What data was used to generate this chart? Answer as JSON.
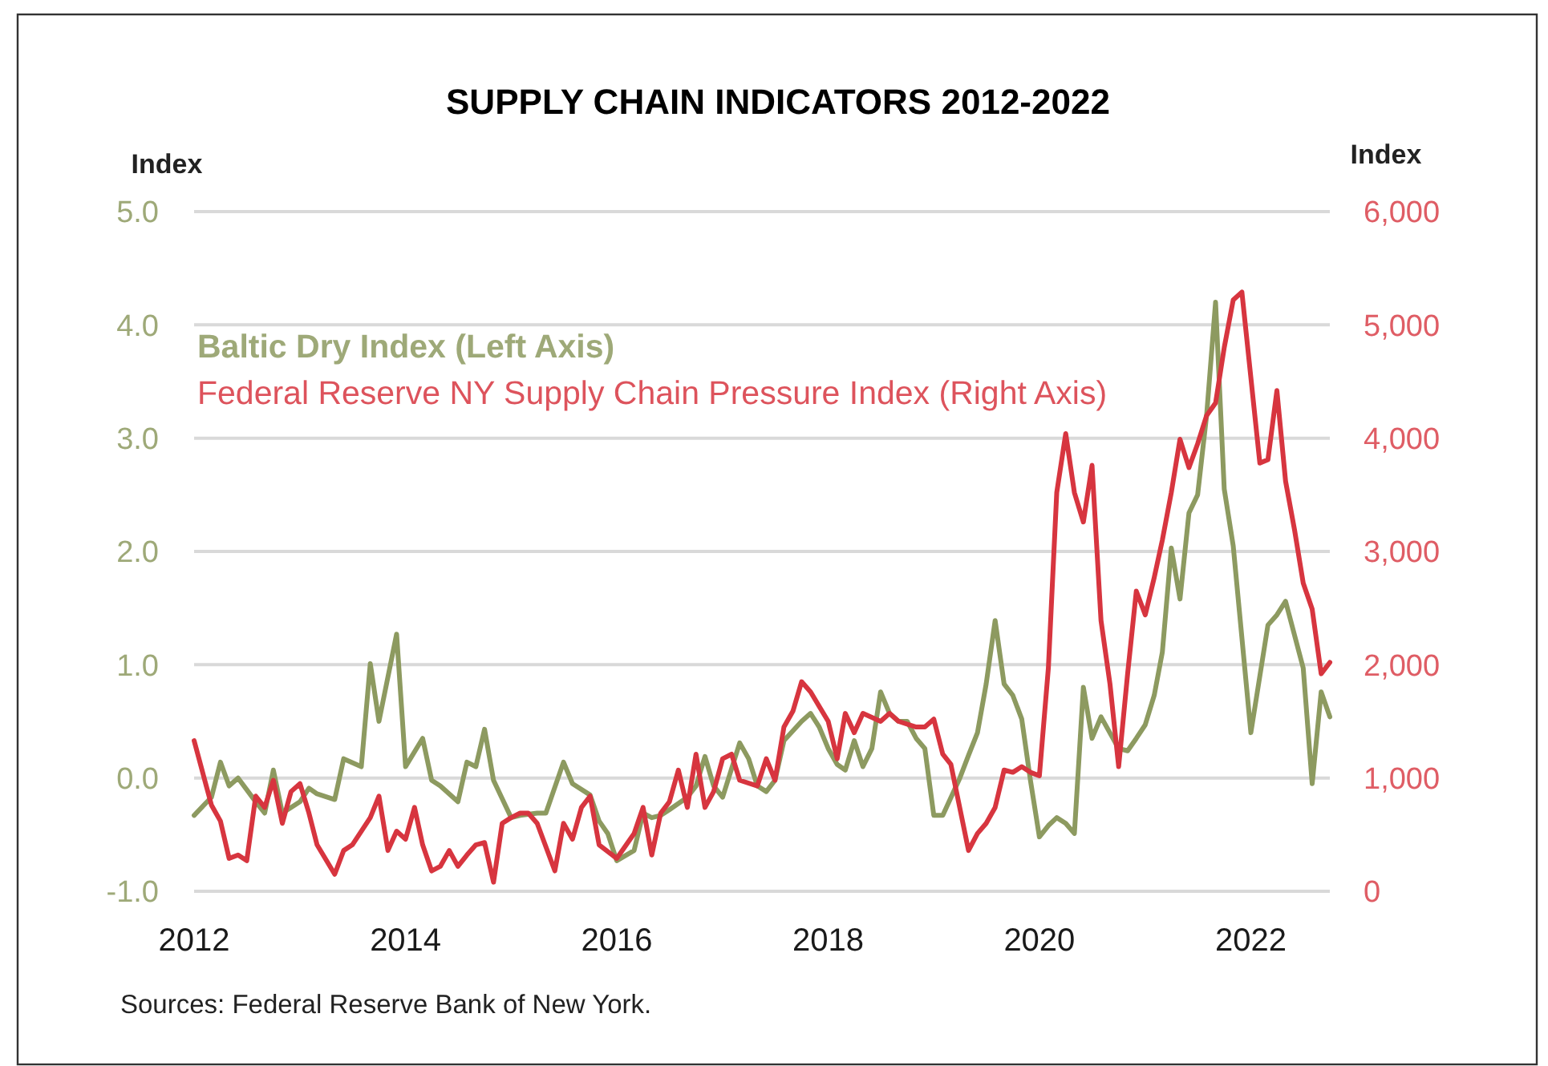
{
  "chart_data": {
    "type": "line",
    "title": "SUPPLY CHAIN INDICATORS 2012-2022",
    "ylabel": "Index",
    "y2label": "Index",
    "annotations": [
      "Sources: Federal Reserve Bank of New York."
    ],
    "xlim": [
      "2012-01",
      "2022-10"
    ],
    "xticks": [
      "2012",
      "2014",
      "2016",
      "2018",
      "2020",
      "2022"
    ],
    "ylim": [
      -1,
      5
    ],
    "yticks": [
      {
        "value": -1,
        "label": "-1.0"
      },
      {
        "value": 0,
        "label": "0.0"
      },
      {
        "value": 1,
        "label": "1.0"
      },
      {
        "value": 2,
        "label": "2.0"
      },
      {
        "value": 3,
        "label": "3.0"
      },
      {
        "value": 4,
        "label": "4.0"
      },
      {
        "value": 5,
        "label": "5.0"
      }
    ],
    "y2lim": [
      0,
      6000
    ],
    "y2ticks": [
      0,
      {
        "value": 1000,
        "label": "1,000"
      },
      {
        "value": 2000,
        "label": "2,000"
      },
      {
        "value": 3000,
        "label": "3,000"
      },
      {
        "value": 4000,
        "label": "4,000"
      },
      {
        "value": 5000,
        "label": "5,000"
      },
      {
        "value": 6000,
        "label": "6,000"
      }
    ],
    "grid": "y",
    "legend": "top left",
    "series": [
      {
        "name": "Baltic Dry Index (Left Axis)",
        "color": "#8d9a60",
        "axis": "y",
        "x": [
          "2012-01",
          "2012-03",
          "2012-04",
          "2012-05",
          "2012-06",
          "2012-08",
          "2012-09",
          "2012-10",
          "2012-11",
          "2013-01",
          "2013-02",
          "2013-03",
          "2013-05",
          "2013-06",
          "2013-08",
          "2013-09",
          "2013-10",
          "2013-12",
          "2014-01",
          "2014-03",
          "2014-04",
          "2014-05",
          "2014-07",
          "2014-08",
          "2014-09",
          "2014-10",
          "2014-11",
          "2015-01",
          "2015-02",
          "2015-04",
          "2015-05",
          "2015-07",
          "2015-08",
          "2015-10",
          "2015-11",
          "2015-12",
          "2016-01",
          "2016-03",
          "2016-04",
          "2016-05",
          "2016-06",
          "2016-07",
          "2016-09",
          "2016-10",
          "2016-11",
          "2016-12",
          "2017-01",
          "2017-03",
          "2017-04",
          "2017-05",
          "2017-06",
          "2017-07",
          "2017-08",
          "2017-10",
          "2017-11",
          "2017-12",
          "2018-01",
          "2018-02",
          "2018-03",
          "2018-04",
          "2018-05",
          "2018-06",
          "2018-07",
          "2018-08",
          "2018-09",
          "2018-10",
          "2018-11",
          "2018-12",
          "2019-01",
          "2019-02",
          "2019-04",
          "2019-05",
          "2019-06",
          "2019-07",
          "2019-08",
          "2019-09",
          "2019-10",
          "2019-11",
          "2019-12",
          "2020-01",
          "2020-02",
          "2020-03",
          "2020-04",
          "2020-05",
          "2020-06",
          "2020-07",
          "2020-08",
          "2020-10",
          "2020-11",
          "2020-12",
          "2021-01",
          "2021-02",
          "2021-03",
          "2021-04",
          "2021-05",
          "2021-06",
          "2021-07",
          "2021-08",
          "2021-09",
          "2021-10",
          "2021-11",
          "2022-01",
          "2022-03",
          "2022-04",
          "2022-05",
          "2022-07",
          "2022-08",
          "2022-09",
          "2022-10"
        ],
        "values": [
          -0.33,
          -0.17,
          0.14,
          -0.07,
          0.0,
          -0.21,
          -0.31,
          0.07,
          -0.31,
          -0.21,
          -0.09,
          -0.14,
          -0.19,
          0.17,
          0.1,
          1.01,
          0.5,
          1.27,
          0.1,
          0.35,
          -0.02,
          -0.07,
          -0.21,
          0.14,
          0.1,
          0.43,
          -0.02,
          -0.35,
          -0.33,
          -0.31,
          -0.31,
          0.14,
          -0.05,
          -0.15,
          -0.38,
          -0.49,
          -0.73,
          -0.64,
          -0.31,
          -0.35,
          -0.33,
          -0.28,
          -0.17,
          -0.07,
          0.19,
          -0.07,
          -0.17,
          0.31,
          0.17,
          -0.07,
          -0.12,
          -0.02,
          0.33,
          0.5,
          0.57,
          0.45,
          0.26,
          0.12,
          0.07,
          0.33,
          0.1,
          0.26,
          0.76,
          0.57,
          0.5,
          0.5,
          0.35,
          0.26,
          -0.33,
          -0.33,
          0.0,
          0.2,
          0.4,
          0.83,
          1.39,
          0.83,
          0.73,
          0.52,
          -0.02,
          -0.52,
          -0.42,
          -0.35,
          -0.4,
          -0.49,
          0.8,
          0.35,
          0.54,
          0.26,
          0.24,
          0.35,
          0.47,
          0.73,
          1.11,
          2.03,
          1.58,
          2.34,
          2.5,
          3.2,
          4.2,
          2.55,
          2.05,
          0.4,
          1.35,
          1.44,
          1.56,
          0.97,
          -0.05,
          0.76,
          0.54
        ]
      },
      {
        "name": "Federal Reserve NY Supply Chain Pressure Index (Right Axis)",
        "color": "#d7353f",
        "axis": "y2",
        "x": [
          "2012-01",
          "2012-03",
          "2012-04",
          "2012-05",
          "2012-06",
          "2012-07",
          "2012-08",
          "2012-09",
          "2012-10",
          "2012-11",
          "2012-12",
          "2013-01",
          "2013-02",
          "2013-03",
          "2013-05",
          "2013-06",
          "2013-07",
          "2013-09",
          "2013-10",
          "2013-11",
          "2013-12",
          "2014-01",
          "2014-02",
          "2014-03",
          "2014-04",
          "2014-05",
          "2014-06",
          "2014-07",
          "2014-08",
          "2014-09",
          "2014-10",
          "2014-11",
          "2014-12",
          "2015-01",
          "2015-02",
          "2015-03",
          "2015-04",
          "2015-06",
          "2015-07",
          "2015-08",
          "2015-09",
          "2015-10",
          "2015-11",
          "2016-01",
          "2016-03",
          "2016-04",
          "2016-05",
          "2016-06",
          "2016-07",
          "2016-08",
          "2016-09",
          "2016-10",
          "2016-11",
          "2016-12",
          "2017-01",
          "2017-02",
          "2017-03",
          "2017-05",
          "2017-06",
          "2017-07",
          "2017-08",
          "2017-09",
          "2017-10",
          "2017-11",
          "2018-01",
          "2018-02",
          "2018-03",
          "2018-04",
          "2018-05",
          "2018-07",
          "2018-08",
          "2018-09",
          "2018-11",
          "2018-12",
          "2019-01",
          "2019-02",
          "2019-03",
          "2019-05",
          "2019-06",
          "2019-07",
          "2019-08",
          "2019-09",
          "2019-10",
          "2019-11",
          "2019-12",
          "2020-01",
          "2020-02",
          "2020-03",
          "2020-04",
          "2020-05",
          "2020-06",
          "2020-07",
          "2020-08",
          "2020-09",
          "2020-10",
          "2020-11",
          "2020-12",
          "2021-01",
          "2021-02",
          "2021-03",
          "2021-04",
          "2021-05",
          "2021-06",
          "2021-07",
          "2021-08",
          "2021-09",
          "2021-10",
          "2021-11",
          "2021-12",
          "2022-02",
          "2022-03",
          "2022-04",
          "2022-05",
          "2022-06",
          "2022-07",
          "2022-08",
          "2022-09",
          "2022-10"
        ],
        "values": [
          1330,
          760,
          620,
          290,
          320,
          270,
          840,
          740,
          980,
          600,
          880,
          950,
          690,
          410,
          150,
          360,
          410,
          650,
          840,
          360,
          530,
          460,
          740,
          410,
          180,
          220,
          360,
          220,
          320,
          410,
          430,
          80,
          600,
          650,
          690,
          690,
          600,
          180,
          600,
          460,
          740,
          840,
          410,
          290,
          510,
          740,
          320,
          690,
          790,
          1070,
          740,
          1210,
          740,
          880,
          1170,
          1210,
          980,
          930,
          1170,
          980,
          1450,
          1590,
          1850,
          1760,
          1500,
          1170,
          1570,
          1400,
          1570,
          1500,
          1570,
          1500,
          1450,
          1450,
          1520,
          1210,
          1120,
          360,
          510,
          600,
          740,
          1070,
          1050,
          1100,
          1050,
          1020,
          1970,
          3520,
          4040,
          3520,
          3260,
          3760,
          2390,
          1830,
          1100,
          1920,
          2650,
          2440,
          2770,
          3100,
          3520,
          3990,
          3740,
          3950,
          4200,
          4310,
          4800,
          5220,
          5290,
          3780,
          3810,
          4420,
          3620,
          3190,
          2720,
          2490,
          1920,
          2020
        ]
      }
    ]
  }
}
